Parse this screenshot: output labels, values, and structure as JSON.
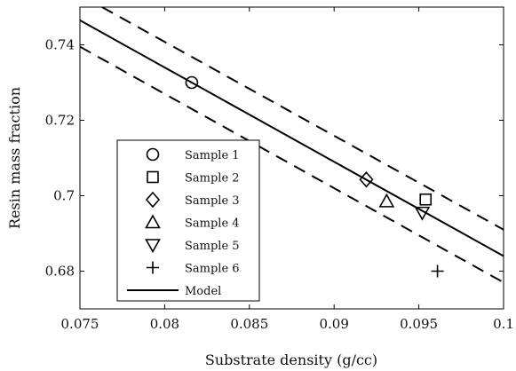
{
  "chart_data": {
    "type": "scatter",
    "title": "",
    "xlabel": "Substrate density (g/cc)",
    "ylabel": "Resin mass fraction",
    "xlim": [
      0.075,
      0.1
    ],
    "ylim": [
      0.67,
      0.75
    ],
    "x_ticks": [
      0.075,
      0.08,
      0.085,
      0.09,
      0.095,
      0.1
    ],
    "x_tick_labels": [
      "0.075",
      "0.08",
      "0.085",
      "0.09",
      "0.095",
      "0.1"
    ],
    "y_ticks": [
      0.68,
      0.7,
      0.72,
      0.74
    ],
    "y_tick_labels": [
      "0.68",
      "0.7",
      "0.72",
      "0.74"
    ],
    "grid": false,
    "legend_position": "lower-left",
    "series": [
      {
        "name": "Sample 1",
        "marker": "circle",
        "x": [
          0.0816
        ],
        "y": [
          0.73
        ]
      },
      {
        "name": "Sample 2",
        "marker": "square",
        "x": [
          0.0954
        ],
        "y": [
          0.699
        ]
      },
      {
        "name": "Sample 3",
        "marker": "diamond",
        "x": [
          0.0919
        ],
        "y": [
          0.7043
        ]
      },
      {
        "name": "Sample 4",
        "marker": "triangle-up",
        "x": [
          0.0931
        ],
        "y": [
          0.6985
        ]
      },
      {
        "name": "Sample 5",
        "marker": "triangle-down",
        "x": [
          0.0952
        ],
        "y": [
          0.6955
        ]
      },
      {
        "name": "Sample 6",
        "marker": "plus",
        "x": [
          0.0961
        ],
        "y": [
          0.68
        ]
      }
    ],
    "model": {
      "name": "Model",
      "style": "solid",
      "x": [
        0.075,
        0.1
      ],
      "y": [
        0.7465,
        0.684
      ]
    },
    "bounds": [
      {
        "style": "dashed",
        "x": [
          0.0763,
          0.1
        ],
        "y": [
          0.75,
          0.691
        ]
      },
      {
        "style": "dashed",
        "x": [
          0.075,
          0.1
        ],
        "y": [
          0.7395,
          0.677
        ]
      }
    ],
    "colors": {
      "ink": "#000000",
      "background": "#ffffff"
    }
  }
}
